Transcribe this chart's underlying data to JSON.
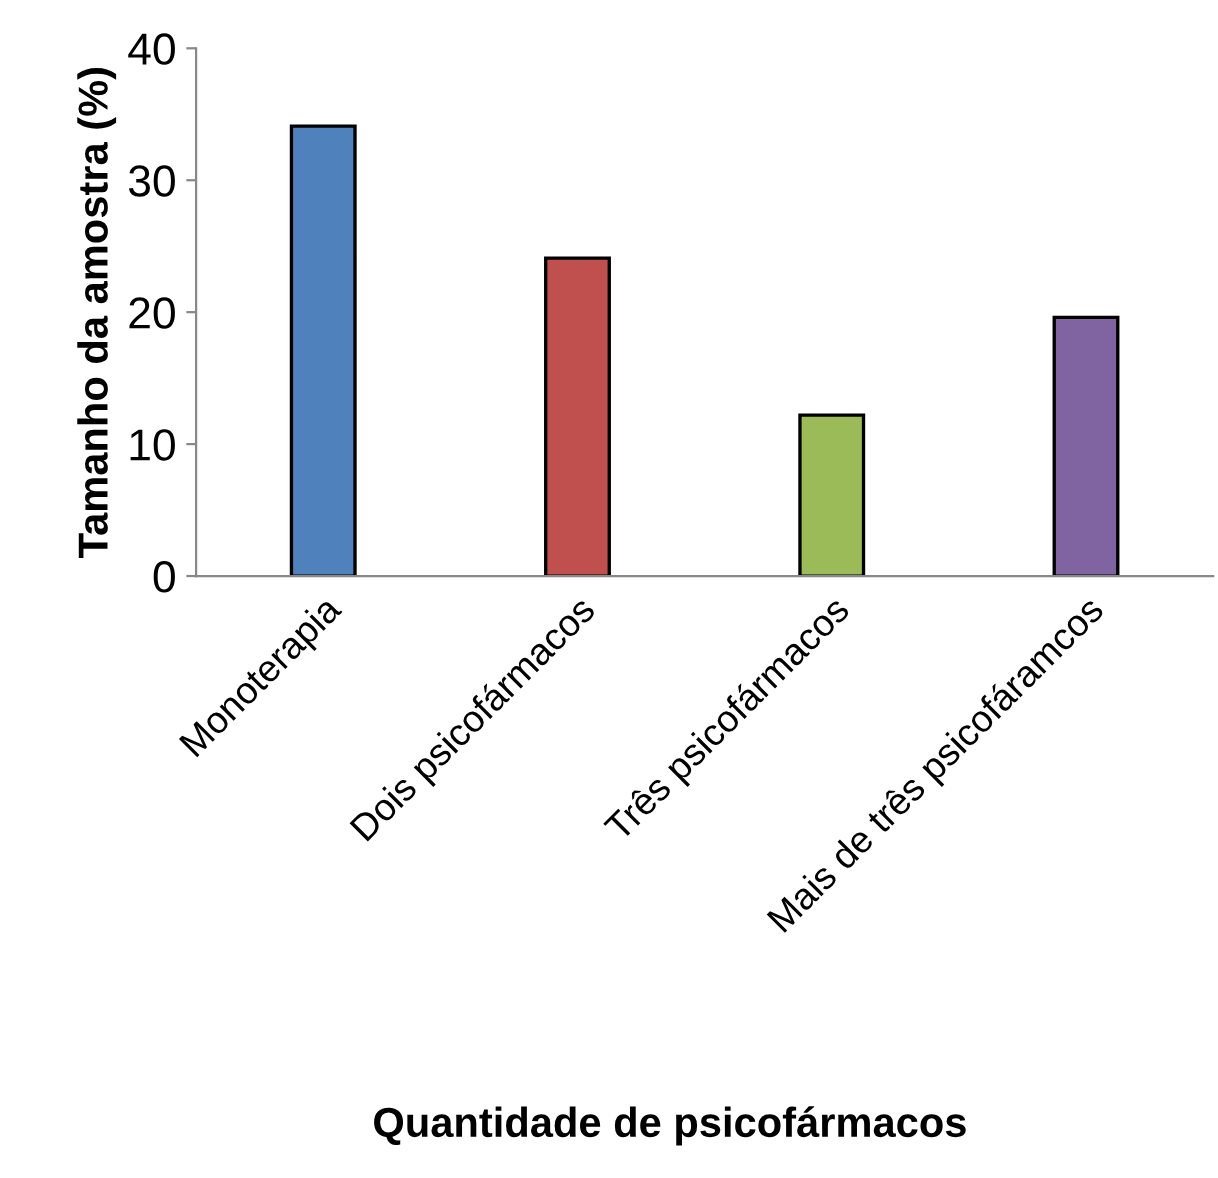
{
  "chart_data": {
    "type": "bar",
    "xlabel": "Quantidade de psicofármacos",
    "ylabel": "Tamanho da amostra (%)",
    "categories": [
      "Monoterapia",
      "Dois psicofármacos",
      "Três psicofármacos",
      "Mais de três psicofáramcos"
    ],
    "values": [
      34.1,
      24.1,
      12.2,
      19.6
    ],
    "colors": [
      "#4f81bd",
      "#c0504d",
      "#9bbb59",
      "#8064a2"
    ],
    "ylim": [
      0,
      40
    ],
    "yticks": [
      0,
      10,
      20,
      30,
      40
    ],
    "grid": false,
    "legend": false
  }
}
